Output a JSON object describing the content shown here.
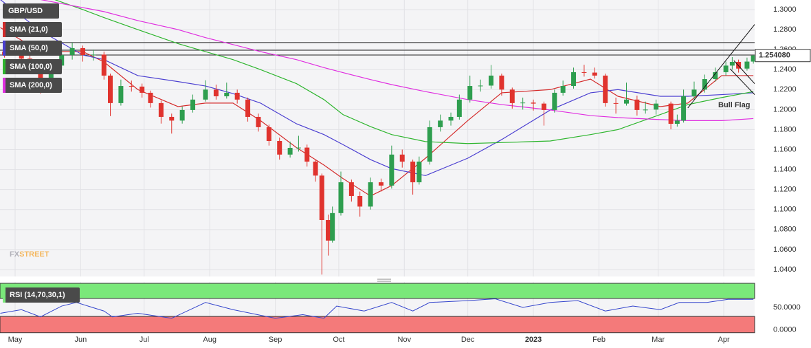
{
  "chart_data": {
    "type": "candlestick",
    "title": "GBP/USD",
    "up_color": "#2e9e4f",
    "down_color": "#e0332e",
    "x": [
      -5,
      3,
      7,
      12,
      17,
      22,
      27,
      32,
      37,
      42,
      45,
      50,
      55,
      60,
      64,
      69,
      74,
      79,
      84,
      90,
      95,
      100,
      105,
      110,
      115,
      120,
      125,
      130,
      134,
      138,
      142,
      145,
      148,
      150,
      154,
      159,
      163,
      168,
      173,
      178,
      183,
      188,
      191,
      196,
      201,
      206,
      210,
      215,
      220,
      225,
      230,
      235,
      240,
      245,
      250,
      255,
      259,
      264,
      269,
      274,
      279,
      284,
      289,
      294,
      298,
      303,
      310,
      313,
      316,
      321,
      326,
      331,
      336,
      339,
      342,
      346,
      349
    ],
    "open": [
      1.258,
      1.2546,
      1.251,
      1.241,
      1.2305,
      1.244,
      1.2546,
      1.2615,
      1.2546,
      1.255,
      1.234,
      1.2065,
      1.2236,
      1.223,
      1.2168,
      1.2065,
      1.1927,
      1.189,
      1.1996,
      1.21,
      1.22,
      1.2133,
      1.2168,
      1.21,
      1.1927,
      1.1824,
      1.1686,
      1.155,
      1.1617,
      1.162,
      1.148,
      1.134,
      1.0895,
      1.069,
      1.0965,
      1.1273,
      1.1136,
      1.103,
      1.1273,
      1.124,
      1.155,
      1.148,
      1.1273,
      1.148,
      1.1824,
      1.189,
      1.1927,
      1.21,
      1.2236,
      1.224,
      1.234,
      1.22,
      1.2065,
      1.207,
      1.206,
      1.1996,
      1.2168,
      1.2236,
      1.2374,
      1.237,
      1.234,
      1.2065,
      1.206,
      1.21,
      1.1996,
      1.2,
      1.206,
      1.1858,
      1.189,
      1.2133,
      1.22,
      1.2305,
      1.2374,
      1.244,
      1.2477,
      1.241,
      1.248
    ],
    "high": [
      1.264,
      1.26,
      1.254,
      1.244,
      1.248,
      1.26,
      1.267,
      1.264,
      1.26,
      1.258,
      1.236,
      1.23,
      1.229,
      1.226,
      1.219,
      1.209,
      1.196,
      1.203,
      1.215,
      1.2293,
      1.225,
      1.227,
      1.22,
      1.212,
      1.196,
      1.185,
      1.172,
      1.168,
      1.1738,
      1.165,
      1.15,
      1.136,
      1.095,
      1.103,
      1.138,
      1.13,
      1.118,
      1.132,
      1.131,
      1.164,
      1.16,
      1.15,
      1.153,
      1.189,
      1.195,
      1.197,
      1.215,
      1.234,
      1.23,
      1.2446,
      1.236,
      1.222,
      1.212,
      1.21,
      1.208,
      1.22,
      1.229,
      1.242,
      1.2448,
      1.242,
      1.236,
      1.212,
      1.227,
      1.214,
      1.208,
      1.21,
      1.208,
      1.195,
      1.22,
      1.228,
      1.235,
      1.242,
      1.248,
      1.2525,
      1.25,
      1.252,
      1.2546
    ],
    "low": [
      1.252,
      1.246,
      1.236,
      1.216,
      1.228,
      1.241,
      1.25,
      1.248,
      1.249,
      1.23,
      1.1935,
      1.204,
      1.218,
      1.212,
      1.202,
      1.186,
      1.176,
      1.186,
      1.197,
      1.208,
      1.21,
      1.211,
      1.206,
      1.188,
      1.178,
      1.164,
      1.15,
      1.152,
      1.158,
      1.143,
      1.128,
      1.035,
      1.054,
      1.067,
      1.094,
      1.108,
      1.093,
      1.1,
      1.118,
      1.121,
      1.142,
      1.115,
      1.125,
      1.145,
      1.178,
      1.184,
      1.19,
      1.207,
      1.218,
      1.221,
      1.214,
      1.201,
      1.2,
      1.199,
      1.184,
      1.197,
      1.214,
      1.221,
      1.233,
      1.231,
      1.203,
      1.196,
      1.204,
      1.194,
      1.196,
      1.195,
      1.1803,
      1.183,
      1.187,
      1.21,
      1.217,
      1.228,
      1.234,
      1.24,
      1.237,
      1.239,
      1.246
    ],
    "close": [
      1.2546,
      1.251,
      1.241,
      1.2305,
      1.244,
      1.2546,
      1.2615,
      1.2546,
      1.255,
      1.234,
      1.2065,
      1.2236,
      1.223,
      1.2168,
      1.2065,
      1.1927,
      1.189,
      1.1996,
      1.21,
      1.22,
      1.2133,
      1.2168,
      1.21,
      1.1927,
      1.1824,
      1.1686,
      1.155,
      1.1617,
      1.162,
      1.148,
      1.134,
      1.0895,
      1.069,
      1.0965,
      1.1273,
      1.1136,
      1.103,
      1.1273,
      1.124,
      1.155,
      1.148,
      1.1273,
      1.148,
      1.1824,
      1.189,
      1.1927,
      1.21,
      1.2236,
      1.224,
      1.234,
      1.22,
      1.2065,
      1.207,
      1.206,
      1.1996,
      1.2168,
      1.2236,
      1.2374,
      1.237,
      1.234,
      1.2065,
      1.206,
      1.21,
      1.1996,
      1.2,
      1.206,
      1.1858,
      1.189,
      1.2133,
      1.22,
      1.2305,
      1.2374,
      1.244,
      1.2477,
      1.241,
      1.248,
      1.25408
    ],
    "last_price": {
      "value": 1.25408,
      "label": "1.254080"
    },
    "xlim": [
      -7.15,
      349.6
    ],
    "xticks": [
      {
        "value": 0,
        "label": "May"
      },
      {
        "value": 31,
        "label": "Jun"
      },
      {
        "value": 61,
        "label": "Jul"
      },
      {
        "value": 92,
        "label": "Aug"
      },
      {
        "value": 123,
        "label": "Sep"
      },
      {
        "value": 153,
        "label": "Oct"
      },
      {
        "value": 184,
        "label": "Nov"
      },
      {
        "value": 214,
        "label": "Dec"
      },
      {
        "value": 245,
        "label": "2023"
      },
      {
        "value": 276,
        "label": "Feb"
      },
      {
        "value": 304,
        "label": "Mar"
      },
      {
        "value": 335,
        "label": "Apr"
      }
    ],
    "ylim": [
      1.0331,
      1.3096
    ],
    "yticks": [
      {
        "value": 1.04,
        "label": "1.0400"
      },
      {
        "value": 1.06,
        "label": "1.0600"
      },
      {
        "value": 1.08,
        "label": "1.0800"
      },
      {
        "value": 1.1,
        "label": "1.1000"
      },
      {
        "value": 1.12,
        "label": "1.1200"
      },
      {
        "value": 1.14,
        "label": "1.1400"
      },
      {
        "value": 1.16,
        "label": "1.1600"
      },
      {
        "value": 1.18,
        "label": "1.1800"
      },
      {
        "value": 1.2,
        "label": "1.2000"
      },
      {
        "value": 1.22,
        "label": "1.2200"
      },
      {
        "value": 1.24,
        "label": "1.2400"
      },
      {
        "value": 1.26,
        "label": "1.2600"
      },
      {
        "value": 1.28,
        "label": "1.2800"
      },
      {
        "value": 1.3,
        "label": "1.3000"
      }
    ],
    "grid": true,
    "hlines": [
      1.267,
      1.2594,
      1.2546
    ],
    "trendlines": [
      {
        "x": [
          318,
          355
        ],
        "y": [
          1.2016,
          1.2993
        ]
      },
      {
        "x": [
          339.8,
          355
        ],
        "y": [
          1.249,
          1.2133
        ]
      },
      {
        "x": [
          338,
          355
        ],
        "y": [
          1.2408,
          1.203
        ]
      }
    ],
    "annotation": "Bull Flag",
    "watermark": [
      "FX",
      "STREET"
    ],
    "overlays": {
      "x": [
        -7,
        12,
        32,
        42,
        58,
        77,
        90,
        103,
        116,
        133,
        146,
        155,
        168,
        178,
        194,
        214,
        230,
        253,
        272,
        285,
        305,
        318,
        334,
        349
      ],
      "series": [
        {
          "name": "SMA (21,0)",
          "color": "#d42a2a",
          "values": [
            1.282,
            1.258,
            1.258,
            1.2477,
            1.22,
            1.203,
            1.2065,
            1.2065,
            1.189,
            1.162,
            1.1445,
            1.131,
            1.1136,
            1.124,
            1.1514,
            1.189,
            1.2168,
            1.22,
            1.2305,
            1.2133,
            1.203,
            1.2065,
            1.234,
            1.234
          ]
        },
        {
          "name": "SMA (50,0)",
          "color": "#4b3fd1",
          "values": [
            1.31,
            1.2787,
            1.2546,
            1.25,
            1.234,
            1.228,
            1.2236,
            1.216,
            1.2065,
            1.1858,
            1.175,
            1.165,
            1.15,
            1.141,
            1.134,
            1.1514,
            1.17,
            1.1996,
            1.2168,
            1.22,
            1.2133,
            1.2133,
            1.215,
            1.2168
          ]
        },
        {
          "name": "SMA (100,0)",
          "color": "#2db52d",
          "values": [
            1.33,
            1.315,
            1.3,
            1.292,
            1.28,
            1.266,
            1.258,
            1.25,
            1.24,
            1.226,
            1.21,
            1.195,
            1.183,
            1.175,
            1.168,
            1.166,
            1.167,
            1.1686,
            1.175,
            1.18,
            1.195,
            1.205,
            1.212,
            1.218
          ]
        },
        {
          "name": "SMA (200,0)",
          "color": "#e02ee0",
          "values": [
            1.32,
            1.31,
            1.302,
            1.298,
            1.289,
            1.28,
            1.272,
            1.265,
            1.258,
            1.25,
            1.242,
            1.237,
            1.23,
            1.225,
            1.218,
            1.21,
            1.205,
            1.1996,
            1.194,
            1.192,
            1.19,
            1.189,
            1.189,
            1.191
          ]
        }
      ]
    },
    "rsi": {
      "name": "RSI (14,70,30,1)",
      "color": "#3344cc",
      "band_colors": [
        "#f47a7a",
        "#7ae87a"
      ],
      "bands": [
        30,
        70
      ],
      "x": [
        -7,
        3,
        12,
        22,
        29,
        42,
        46,
        58,
        74,
        90,
        103,
        123,
        136,
        146,
        152,
        165,
        178,
        188,
        196,
        214,
        227,
        240,
        253,
        266,
        279,
        292,
        305,
        314,
        327,
        337,
        349
      ],
      "values": [
        37,
        45,
        29,
        53,
        61,
        42,
        29,
        37,
        26,
        61,
        45,
        26,
        34,
        26,
        53,
        42,
        61,
        42,
        61,
        65,
        69,
        50,
        61,
        65,
        42,
        53,
        45,
        61,
        61,
        68,
        68
      ],
      "ylim": [
        -6.5,
        106.5
      ],
      "yticks": [
        {
          "value": 0,
          "label": "0.0000"
        },
        {
          "value": 50,
          "label": "50.0000"
        }
      ]
    }
  }
}
